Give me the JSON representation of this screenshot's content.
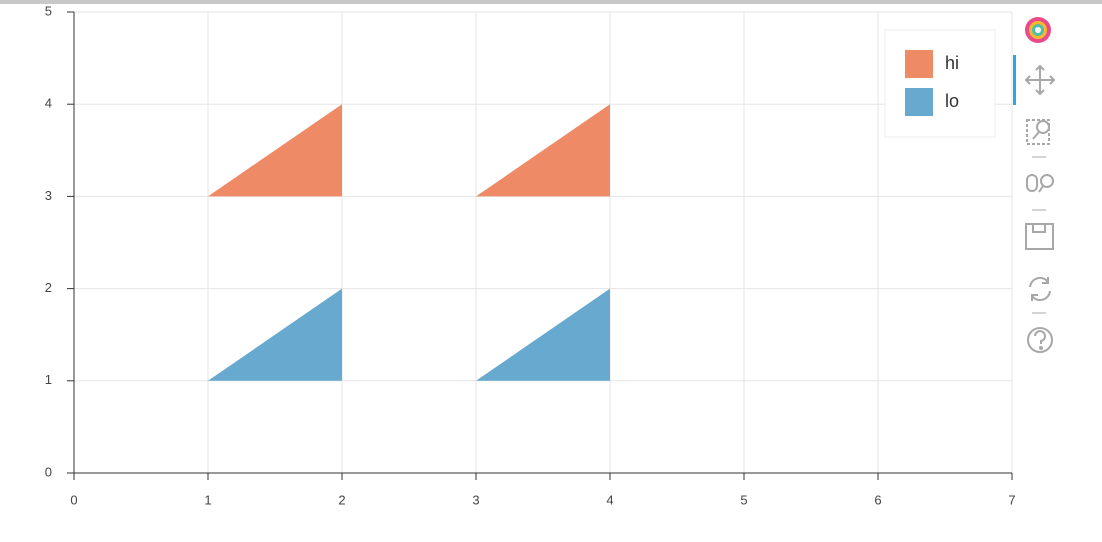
{
  "chart_data": {
    "type": "patches",
    "series": [
      {
        "name": "hi",
        "color": "#ee8a66",
        "patches": [
          {
            "xs": [
              1,
              2,
              2
            ],
            "ys": [
              3,
              3,
              4
            ]
          },
          {
            "xs": [
              3,
              4,
              4
            ],
            "ys": [
              3,
              3,
              4
            ]
          }
        ]
      },
      {
        "name": "lo",
        "color": "#67a9cf",
        "patches": [
          {
            "xs": [
              1,
              2,
              2
            ],
            "ys": [
              1,
              1,
              2
            ]
          },
          {
            "xs": [
              3,
              4,
              4
            ],
            "ys": [
              1,
              1,
              2
            ]
          }
        ]
      }
    ],
    "xlim": [
      0,
      7
    ],
    "ylim": [
      0,
      5
    ],
    "xticks": [
      0,
      1,
      2,
      3,
      4,
      5,
      6,
      7
    ],
    "yticks": [
      0,
      1,
      2,
      3,
      4,
      5
    ],
    "grid": true,
    "legend_position": "top-right"
  }
}
